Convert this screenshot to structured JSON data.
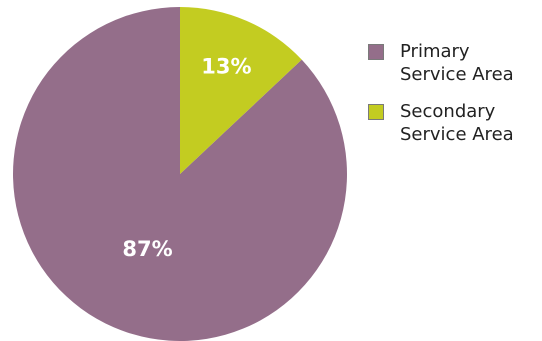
{
  "chart_data": {
    "type": "pie",
    "slices": [
      {
        "name": "Primary Service Area",
        "legend_lines": [
          "Primary",
          "Service Area"
        ],
        "value": 87,
        "label": "87%",
        "color": "#946e8a"
      },
      {
        "name": "Secondary Service Area",
        "legend_lines": [
          "Secondary",
          "Service Area"
        ],
        "value": 13,
        "label": "13%",
        "color": "#c3cc21"
      }
    ],
    "start_angle_deg": 0,
    "direction": "counterclockwise",
    "legend_position": "right"
  }
}
